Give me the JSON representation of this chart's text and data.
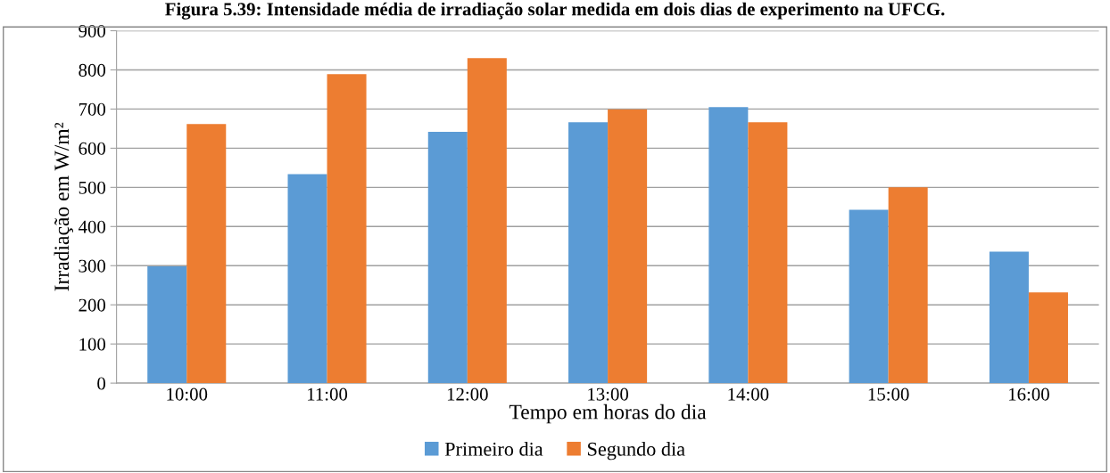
{
  "chart_data": {
    "type": "bar",
    "title": "Figura 5.39: Intensidade média de irradiação solar medida em dois dias de experimento na UFCG.",
    "xlabel": "Tempo em horas do dia",
    "ylabel": "Irradiação em W/m²",
    "categories": [
      "10:00",
      "11:00",
      "12:00",
      "13:00",
      "14:00",
      "15:00",
      "16:00"
    ],
    "series": [
      {
        "name": "Primeiro dia",
        "color": "#5b9bd5",
        "values": [
          298,
          534,
          642,
          666,
          705,
          443,
          336
        ]
      },
      {
        "name": "Segundo dia",
        "color": "#ed7d31",
        "values": [
          662,
          789,
          830,
          699,
          666,
          500,
          232
        ]
      }
    ],
    "ylim": [
      0,
      900
    ],
    "yticks": [
      0,
      100,
      200,
      300,
      400,
      500,
      600,
      700,
      800,
      900
    ],
    "grid": "y",
    "legend": "bottom"
  }
}
